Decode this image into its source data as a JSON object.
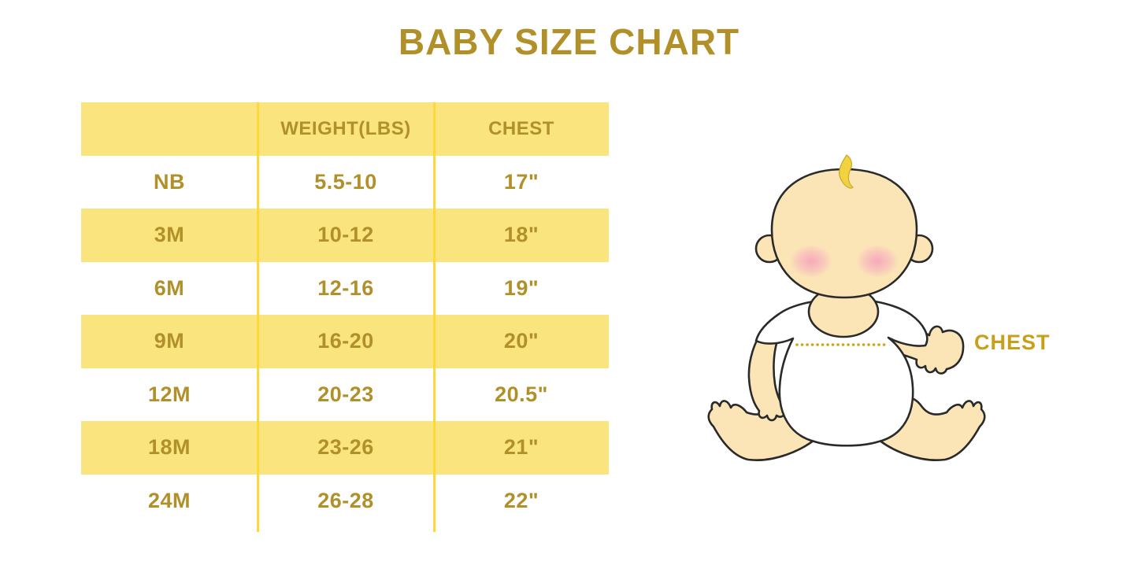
{
  "title": "BABY SIZE CHART",
  "chart_data": {
    "type": "table",
    "title": "BABY SIZE CHART",
    "columns": [
      "",
      "WEIGHT(LBS)",
      "CHEST"
    ],
    "rows": [
      [
        "NB",
        "5.5-10",
        "17\""
      ],
      [
        "3M",
        "10-12",
        "18\""
      ],
      [
        "6M",
        "12-16",
        "19\""
      ],
      [
        "9M",
        "16-20",
        "20\""
      ],
      [
        "12M",
        "20-23",
        "20.5\""
      ],
      [
        "18M",
        "23-26",
        "21\""
      ],
      [
        "24M",
        "26-28",
        "22\""
      ]
    ],
    "layout": {
      "header_fill": "alternating rows start with yellow header",
      "gridlines": "vertical column dividers only"
    }
  },
  "illustration": {
    "chest_label": "CHEST"
  },
  "colors": {
    "gold_text": "#B1902A",
    "row_yellow": "#FAE47E",
    "divider_yellow": "#FCD838",
    "label_gold": "#C89F18",
    "dotted_line_gold": "#D1A515",
    "skin": "#FBE5B6",
    "hair_yellow": "#F1D23F",
    "cheek_pink": "#F5A5C0",
    "background": "#FFFFFF"
  }
}
